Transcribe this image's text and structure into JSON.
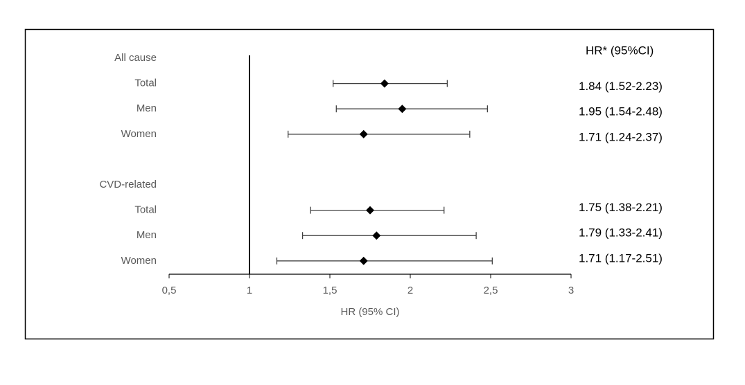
{
  "chart_data": {
    "type": "forest",
    "categories": [
      "All cause",
      "Total",
      "Men",
      "Women",
      null,
      "CVD-related",
      "Total",
      "Men",
      "Women"
    ],
    "values": [
      null,
      1.84,
      1.95,
      1.71,
      null,
      null,
      1.75,
      1.79,
      1.71
    ],
    "lower": [
      null,
      1.52,
      1.54,
      1.24,
      null,
      null,
      1.38,
      1.33,
      1.17
    ],
    "upper": [
      null,
      2.23,
      2.48,
      2.37,
      null,
      null,
      2.21,
      2.41,
      2.51
    ],
    "value_labels": [
      null,
      "1.84 (1.52-2.23)",
      "1.95 (1.54-2.48)",
      "1.71 (1.24-2.37)",
      null,
      null,
      "1.75 (1.38-2.21)",
      "1.79 (1.33-2.41)",
      "1.71 (1.17-2.51)"
    ],
    "label_header": "HR* (95%CI)",
    "x_label": "HR (95% CI)",
    "reference_line": 1,
    "xlim": [
      0.5,
      3
    ],
    "xticks": [
      {
        "value": 0.5,
        "label": "0,5"
      },
      1,
      {
        "value": 1.5,
        "label": "1,5"
      },
      2,
      {
        "value": 2.5,
        "label": "2,5"
      },
      3
    ],
    "color": "#000000"
  }
}
